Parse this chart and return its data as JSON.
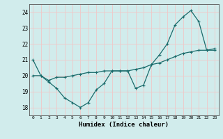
{
  "title": "",
  "xlabel": "Humidex (Indice chaleur)",
  "ylabel": "",
  "background_color": "#d1ecec",
  "grid_color": "#f0c8c8",
  "line_color": "#1a6b6b",
  "xlim": [
    -0.5,
    23.5
  ],
  "ylim": [
    17.5,
    24.5
  ],
  "xticks": [
    0,
    1,
    2,
    3,
    4,
    5,
    6,
    7,
    8,
    9,
    10,
    11,
    12,
    13,
    14,
    15,
    16,
    17,
    18,
    19,
    20,
    21,
    22,
    23
  ],
  "yticks": [
    18,
    19,
    20,
    21,
    22,
    23,
    24
  ],
  "line1_x": [
    0,
    1,
    2,
    3,
    4,
    5,
    6,
    7,
    8,
    9,
    10,
    11,
    12,
    13,
    14,
    15,
    16,
    17,
    18,
    19,
    20,
    21,
    22,
    23
  ],
  "line1_y": [
    21.0,
    20.0,
    19.6,
    19.2,
    18.6,
    18.3,
    18.0,
    18.3,
    19.1,
    19.5,
    20.3,
    20.3,
    20.3,
    19.2,
    19.4,
    20.7,
    21.3,
    22.0,
    23.2,
    23.7,
    24.1,
    23.4,
    21.6,
    21.7
  ],
  "line2_x": [
    0,
    1,
    2,
    3,
    4,
    5,
    6,
    7,
    8,
    9,
    10,
    11,
    12,
    13,
    14,
    15,
    16,
    17,
    18,
    19,
    20,
    21,
    22,
    23
  ],
  "line2_y": [
    20.0,
    20.0,
    19.7,
    19.9,
    19.9,
    20.0,
    20.1,
    20.2,
    20.2,
    20.3,
    20.3,
    20.3,
    20.3,
    20.4,
    20.5,
    20.7,
    20.8,
    21.0,
    21.2,
    21.4,
    21.5,
    21.6,
    21.6,
    21.6
  ]
}
